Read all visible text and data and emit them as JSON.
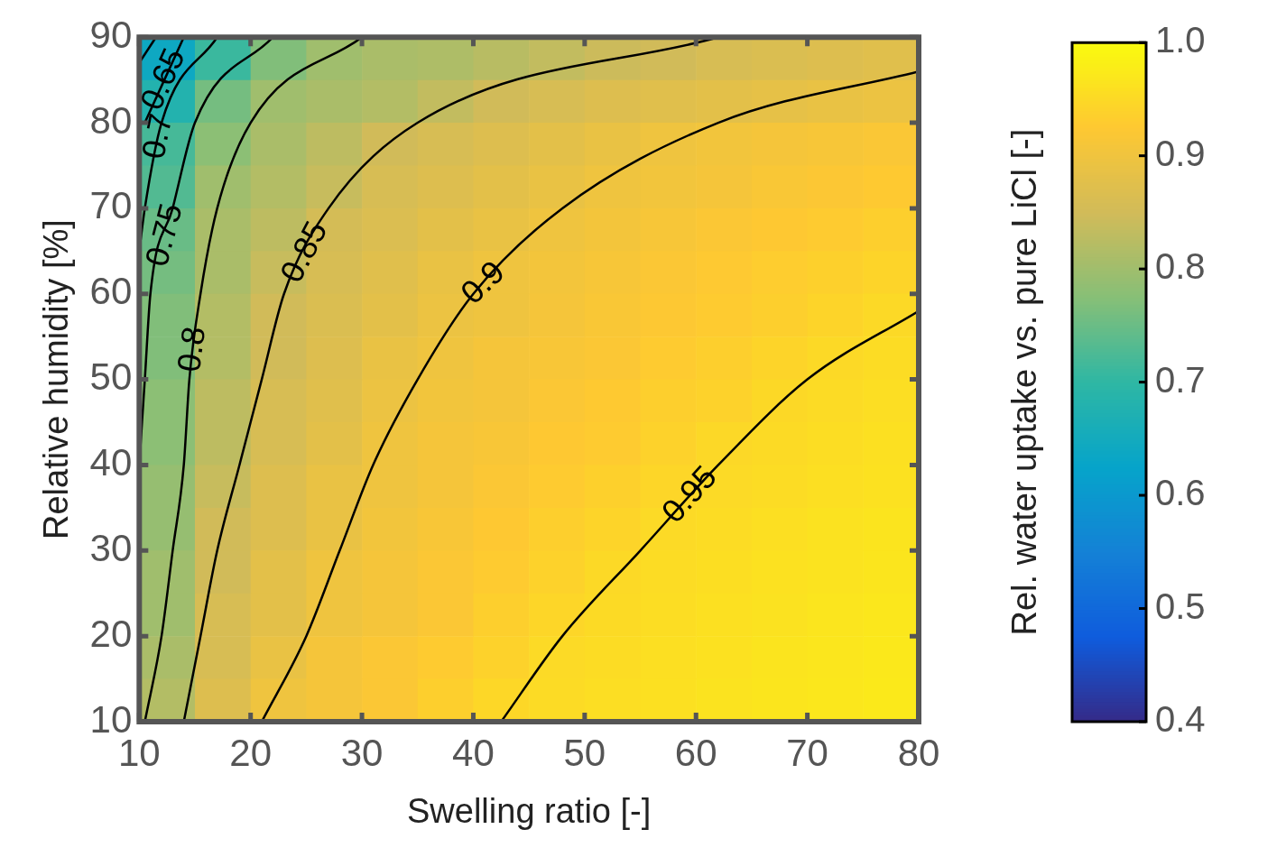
{
  "chart_data": {
    "type": "heatmap",
    "xlabel": "Swelling ratio [-]",
    "ylabel": "Relative humidity [%]",
    "clabel": "Rel. water uptake vs. pure LiCl [-]",
    "x": [
      12.5,
      17.5,
      22.5,
      27.5,
      32.5,
      37.5,
      42.5,
      47.5,
      52.5,
      57.5,
      62.5,
      67.5,
      72.5,
      77.5
    ],
    "y": [
      87.5,
      82.5,
      77.5,
      72.5,
      67.5,
      62.5,
      57.5,
      52.5,
      47.5,
      42.5,
      37.5,
      32.5,
      27.5,
      22.5,
      17.5,
      12.5
    ],
    "cells": [
      [
        0.64,
        0.71,
        0.77,
        0.8,
        0.81,
        0.815,
        0.825,
        0.835,
        0.845,
        0.85,
        0.86,
        0.865,
        0.87,
        0.875
      ],
      [
        0.68,
        0.76,
        0.8,
        0.81,
        0.82,
        0.835,
        0.85,
        0.86,
        0.87,
        0.875,
        0.88,
        0.885,
        0.89,
        0.895
      ],
      [
        0.72,
        0.78,
        0.81,
        0.83,
        0.85,
        0.86,
        0.87,
        0.88,
        0.89,
        0.9,
        0.905,
        0.91,
        0.914,
        0.918
      ],
      [
        0.73,
        0.8,
        0.82,
        0.84,
        0.86,
        0.87,
        0.88,
        0.89,
        0.9,
        0.905,
        0.91,
        0.917,
        0.922,
        0.927
      ],
      [
        0.75,
        0.81,
        0.83,
        0.855,
        0.866,
        0.88,
        0.89,
        0.9,
        0.907,
        0.913,
        0.92,
        0.925,
        0.93,
        0.935
      ],
      [
        0.76,
        0.81,
        0.84,
        0.86,
        0.875,
        0.89,
        0.9,
        0.907,
        0.913,
        0.92,
        0.926,
        0.932,
        0.937,
        0.943
      ],
      [
        0.77,
        0.82,
        0.85,
        0.865,
        0.88,
        0.895,
        0.9,
        0.91,
        0.917,
        0.924,
        0.93,
        0.936,
        0.943,
        0.95
      ],
      [
        0.77,
        0.82,
        0.85,
        0.87,
        0.89,
        0.9,
        0.91,
        0.915,
        0.92,
        0.93,
        0.936,
        0.943,
        0.95,
        0.954
      ],
      [
        0.78,
        0.83,
        0.86,
        0.875,
        0.895,
        0.905,
        0.91,
        0.92,
        0.927,
        0.935,
        0.94,
        0.949,
        0.953,
        0.957
      ],
      [
        0.78,
        0.83,
        0.86,
        0.88,
        0.9,
        0.91,
        0.915,
        0.925,
        0.93,
        0.94,
        0.948,
        0.952,
        0.956,
        0.96
      ],
      [
        0.79,
        0.84,
        0.87,
        0.89,
        0.9,
        0.91,
        0.92,
        0.93,
        0.937,
        0.946,
        0.951,
        0.955,
        0.959,
        0.962
      ],
      [
        0.79,
        0.85,
        0.87,
        0.89,
        0.905,
        0.915,
        0.925,
        0.935,
        0.943,
        0.951,
        0.955,
        0.959,
        0.963,
        0.966
      ],
      [
        0.8,
        0.85,
        0.88,
        0.9,
        0.91,
        0.92,
        0.93,
        0.94,
        0.95,
        0.954,
        0.958,
        0.962,
        0.965,
        0.968
      ],
      [
        0.8,
        0.86,
        0.88,
        0.9,
        0.91,
        0.92,
        0.935,
        0.945,
        0.952,
        0.956,
        0.96,
        0.963,
        0.967,
        0.97
      ],
      [
        0.81,
        0.86,
        0.89,
        0.91,
        0.92,
        0.93,
        0.94,
        0.951,
        0.955,
        0.959,
        0.962,
        0.966,
        0.969,
        0.972
      ],
      [
        0.82,
        0.87,
        0.9,
        0.91,
        0.92,
        0.935,
        0.947,
        0.953,
        0.957,
        0.96,
        0.965,
        0.968,
        0.971,
        0.974
      ]
    ],
    "series": [
      {
        "type": "line",
        "name": "0.95",
        "color": "#000000",
        "x": [
          42.5,
          48,
          55,
          62,
          70,
          80
        ],
        "values": [
          10,
          20,
          30,
          40,
          50,
          58
        ]
      },
      {
        "type": "line",
        "name": "0.9",
        "color": "#000000",
        "x": [
          21,
          25,
          28,
          31,
          35,
          40,
          48,
          62,
          80
        ],
        "values": [
          10,
          20,
          30,
          40,
          50,
          60,
          70,
          80,
          86
        ]
      },
      {
        "type": "line",
        "name": "0.85",
        "color": "#000000",
        "x": [
          14,
          15.5,
          17,
          19,
          21,
          23,
          27,
          35,
          62
        ],
        "values": [
          10,
          20,
          30,
          40,
          50,
          60,
          70,
          80,
          90
        ]
      },
      {
        "type": "line",
        "name": "0.8",
        "color": "#000000",
        "x": [
          10.5,
          12,
          13,
          14,
          14.5,
          15.5,
          17,
          20,
          30
        ],
        "values": [
          10,
          20,
          30,
          40,
          50,
          60,
          70,
          80,
          90
        ]
      },
      {
        "type": "line",
        "name": "0.75",
        "color": "#000000",
        "x": [
          10,
          10.5,
          11,
          13,
          15,
          22
        ],
        "values": [
          40,
          50,
          60,
          70,
          80,
          90
        ]
      },
      {
        "type": "line",
        "name": "0.7",
        "color": "#000000",
        "x": [
          10,
          10.5,
          12,
          17
        ],
        "values": [
          65,
          70,
          80,
          90
        ]
      },
      {
        "type": "line",
        "name": "0.65",
        "color": "#000000",
        "x": [
          10.5,
          14
        ],
        "values": [
          80,
          90
        ]
      },
      {
        "type": "line",
        "color": "#000000",
        "x": [
          10,
          11.5
        ],
        "values": [
          87,
          90
        ]
      }
    ],
    "xlim": [
      10,
      80
    ],
    "ylim": [
      10,
      90
    ],
    "xticks": [
      10,
      20,
      30,
      40,
      50,
      60,
      70,
      80
    ],
    "yticks": [
      10,
      20,
      30,
      40,
      50,
      60,
      70,
      80,
      90
    ],
    "clim": [
      0.4,
      1
    ],
    "cticks": [
      {
        "value": 0.4,
        "label": "0.4"
      },
      {
        "value": 0.5,
        "label": "0.5"
      },
      {
        "value": 0.6,
        "label": "0.6"
      },
      {
        "value": 0.7,
        "label": "0.7"
      },
      {
        "value": 0.8,
        "label": "0.8"
      },
      {
        "value": 0.9,
        "label": "0.9"
      },
      {
        "value": 1,
        "label": "1.0"
      }
    ],
    "legend": false
  }
}
